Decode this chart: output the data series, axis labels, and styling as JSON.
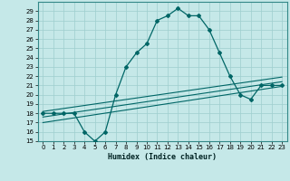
{
  "xlabel": "Humidex (Indice chaleur)",
  "background_color": "#c5e8e8",
  "grid_color": "#9ecece",
  "line_color": "#006666",
  "xlim": [
    -0.5,
    23.5
  ],
  "ylim": [
    15,
    30
  ],
  "yticks": [
    15,
    16,
    17,
    18,
    19,
    20,
    21,
    22,
    23,
    24,
    25,
    26,
    27,
    28,
    29
  ],
  "xticks": [
    0,
    1,
    2,
    3,
    4,
    5,
    6,
    7,
    8,
    9,
    10,
    11,
    12,
    13,
    14,
    15,
    16,
    17,
    18,
    19,
    20,
    21,
    22,
    23
  ],
  "line1_x": [
    0,
    1,
    2,
    3,
    4,
    5,
    6,
    7,
    8,
    9,
    10,
    11,
    12,
    13,
    14,
    15,
    16,
    17,
    18,
    19,
    20,
    21,
    22,
    23
  ],
  "line1_y": [
    18,
    18,
    18,
    18,
    16,
    15,
    16,
    20,
    23,
    24.5,
    25.5,
    28,
    28.5,
    29.3,
    28.5,
    28.5,
    27,
    24.5,
    22,
    20,
    19.5,
    21,
    21,
    21
  ],
  "line2_x": [
    0,
    23
  ],
  "line2_y": [
    18.2,
    21.9
  ],
  "line3_x": [
    0,
    23
  ],
  "line3_y": [
    17.6,
    21.4
  ],
  "line4_x": [
    0,
    23
  ],
  "line4_y": [
    17.0,
    20.9
  ]
}
